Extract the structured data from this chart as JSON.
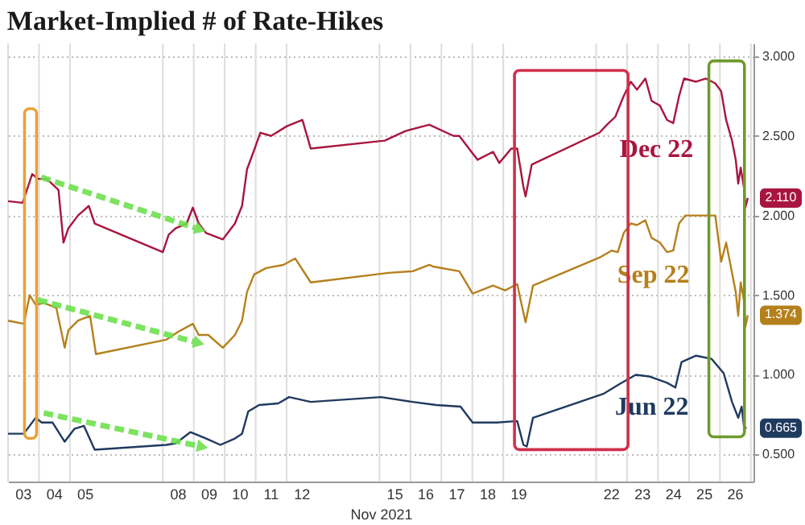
{
  "chart_data": {
    "type": "line",
    "title": "Market-Implied # of Rate-Hikes",
    "xlabel": "Nov 2021",
    "xlim": [
      "2021-11-03T00:00",
      "2021-11-27T02:00"
    ],
    "ylim": [
      0.33,
      3.08
    ],
    "xticks": [
      {
        "value": "2021-11-03T00:00",
        "label": null
      },
      {
        "value": "2021-11-03T12:00",
        "label": "03"
      },
      {
        "value": "2021-11-04T00:00",
        "label": null
      },
      {
        "value": "2021-11-04T12:00",
        "label": "04"
      },
      {
        "value": "2021-11-05T00:00",
        "label": null
      },
      {
        "value": "2021-11-05T12:00",
        "label": "05"
      },
      {
        "value": "2021-11-08T00:00",
        "label": null
      },
      {
        "value": "2021-11-08T12:00",
        "label": "08"
      },
      {
        "value": "2021-11-09T00:00",
        "label": null
      },
      {
        "value": "2021-11-09T12:00",
        "label": "09"
      },
      {
        "value": "2021-11-10T00:00",
        "label": null
      },
      {
        "value": "2021-11-10T12:00",
        "label": "10"
      },
      {
        "value": "2021-11-11T00:00",
        "label": null
      },
      {
        "value": "2021-11-11T12:00",
        "label": "11"
      },
      {
        "value": "2021-11-12T00:00",
        "label": null
      },
      {
        "value": "2021-11-12T12:00",
        "label": "12"
      },
      {
        "value": "2021-11-15T00:00",
        "label": null
      },
      {
        "value": "2021-11-15T12:00",
        "label": "15"
      },
      {
        "value": "2021-11-16T00:00",
        "label": null
      },
      {
        "value": "2021-11-16T12:00",
        "label": "16"
      },
      {
        "value": "2021-11-17T00:00",
        "label": null
      },
      {
        "value": "2021-11-17T12:00",
        "label": "17"
      },
      {
        "value": "2021-11-18T00:00",
        "label": null
      },
      {
        "value": "2021-11-18T12:00",
        "label": "18"
      },
      {
        "value": "2021-11-19T00:00",
        "label": null
      },
      {
        "value": "2021-11-19T12:00",
        "label": "19"
      },
      {
        "value": "2021-11-22T00:00",
        "label": null
      },
      {
        "value": "2021-11-22T12:00",
        "label": "22"
      },
      {
        "value": "2021-11-23T00:00",
        "label": null
      },
      {
        "value": "2021-11-23T12:00",
        "label": "23"
      },
      {
        "value": "2021-11-24T00:00",
        "label": null
      },
      {
        "value": "2021-11-24T12:00",
        "label": "24"
      },
      {
        "value": "2021-11-25T00:00",
        "label": null
      },
      {
        "value": "2021-11-25T12:00",
        "label": "25"
      },
      {
        "value": "2021-11-26T00:00",
        "label": null
      },
      {
        "value": "2021-11-26T12:00",
        "label": "26"
      },
      {
        "value": "2021-11-27T00:00",
        "label": null
      }
    ],
    "yticks": [
      {
        "value": 0.5,
        "label": "0.500"
      },
      {
        "value": 1,
        "label": "1.000"
      },
      {
        "value": 1.5,
        "label": "1.500"
      },
      {
        "value": 2,
        "label": "2.000"
      },
      {
        "value": 2.5,
        "label": "2.500"
      },
      {
        "value": 3,
        "label": "3.000"
      }
    ],
    "grid": true,
    "legend": false,
    "marker": "none",
    "line_style": "solid",
    "series": [
      {
        "name": "Dec 22",
        "color": "#a8163f",
        "x": [
          "2021-11-03T00:00",
          "2021-11-03T11:17",
          "2021-11-03T15:50",
          "2021-11-03T18:43",
          "2021-11-03T23:17",
          "2021-11-04T06:00",
          "2021-11-04T15:07",
          "2021-11-04T18:58",
          "2021-11-04T22:48",
          "2021-11-05T06:14",
          "2021-11-05T14:38",
          "2021-11-05T19:12",
          "2021-11-08T00:00",
          "2021-11-08T04:34",
          "2021-11-08T10:05",
          "2021-11-08T18:29",
          "2021-11-08T23:17",
          "2021-11-09T03:50",
          "2021-11-09T09:36",
          "2021-11-09T22:34",
          "2021-11-10T07:55",
          "2021-11-10T13:26",
          "2021-11-10T17:17",
          "2021-11-10T22:48",
          "2021-11-11T03:36",
          "2021-11-11T12:00",
          "2021-11-12T00:00",
          "2021-11-12T12:14",
          "2021-11-12T18:43",
          "2021-11-15T04:05",
          "2021-11-15T19:55",
          "2021-11-16T14:38",
          "2021-11-17T09:22",
          "2021-11-17T13:55",
          "2021-11-17T21:22",
          "2021-11-18T04:05",
          "2021-11-18T16:05",
          "2021-11-18T20:53",
          "2021-11-19T06:14",
          "2021-11-19T10:48",
          "2021-11-19T15:36",
          "2021-11-19T17:17",
          "2021-11-19T22:05",
          "2021-11-22T02:38",
          "2021-11-22T08:24",
          "2021-11-22T14:53",
          "2021-11-22T21:22",
          "2021-11-23T02:53",
          "2021-11-23T07:41",
          "2021-11-23T14:10",
          "2021-11-23T18:58",
          "2021-11-24T01:26",
          "2021-11-24T06:58",
          "2021-11-24T11:46",
          "2021-11-24T16:19",
          "2021-11-24T20:10",
          "2021-11-25T05:31",
          "2021-11-25T12:58",
          "2021-11-25T20:24",
          "2021-11-26T00:58",
          "2021-11-26T04:48",
          "2021-11-26T09:22",
          "2021-11-26T12:14",
          "2021-11-26T14:10",
          "2021-11-26T16:05",
          "2021-11-26T18:43",
          "2021-11-26T19:41",
          "2021-11-26T21:36"
        ],
        "values": [
          2.09,
          2.08,
          2.19,
          2.26,
          2.23,
          2.23,
          2.16,
          1.83,
          1.92,
          2.0,
          2.06,
          1.95,
          1.77,
          1.88,
          1.92,
          1.95,
          2.05,
          1.95,
          1.89,
          1.85,
          1.95,
          2.06,
          2.29,
          2.41,
          2.52,
          2.5,
          2.56,
          2.6,
          2.42,
          2.47,
          2.53,
          2.57,
          2.5,
          2.5,
          2.42,
          2.35,
          2.4,
          2.33,
          2.42,
          2.42,
          2.18,
          2.12,
          2.32,
          2.52,
          2.57,
          2.62,
          2.75,
          2.84,
          2.79,
          2.86,
          2.72,
          2.69,
          2.6,
          2.58,
          2.75,
          2.86,
          2.84,
          2.86,
          2.83,
          2.78,
          2.6,
          2.47,
          2.35,
          2.2,
          2.3,
          2.17,
          2.05,
          2.11
        ],
        "value_labels": [
          null,
          null,
          null,
          null,
          null,
          null,
          null,
          null,
          null,
          null,
          null,
          null,
          null,
          null,
          null,
          null,
          null,
          null,
          null,
          null,
          null,
          null,
          null,
          null,
          null,
          null,
          null,
          null,
          null,
          null,
          null,
          null,
          null,
          null,
          null,
          null,
          null,
          null,
          null,
          null,
          null,
          null,
          null,
          null,
          null,
          null,
          null,
          null,
          null,
          null,
          null,
          null,
          null,
          null,
          null,
          null,
          null,
          null,
          null,
          null,
          null,
          null,
          null,
          null,
          null,
          null,
          null,
          "2.110"
        ]
      },
      {
        "name": "Sep 22",
        "color": "#b5801c",
        "x": [
          "2021-11-03T00:00",
          "2021-11-03T12:14",
          "2021-11-03T16:48",
          "2021-11-03T21:22",
          "2021-11-04T04:05",
          "2021-11-04T13:26",
          "2021-11-04T19:55",
          "2021-11-04T22:48",
          "2021-11-05T06:14",
          "2021-11-05T15:36",
          "2021-11-05T20:10",
          "2021-11-08T02:38",
          "2021-11-08T12:00",
          "2021-11-08T23:17",
          "2021-11-09T03:50",
          "2021-11-09T11:17",
          "2021-11-09T22:34",
          "2021-11-10T07:55",
          "2021-11-10T13:26",
          "2021-11-10T17:17",
          "2021-11-10T22:48",
          "2021-11-11T08:10",
          "2021-11-11T21:22",
          "2021-11-12T06:43",
          "2021-11-12T18:43",
          "2021-11-15T06:58",
          "2021-11-16T01:41",
          "2021-11-16T14:38",
          "2021-11-16T17:31",
          "2021-11-17T13:55",
          "2021-11-18T00:14",
          "2021-11-18T16:05",
          "2021-11-19T01:26",
          "2021-11-19T10:48",
          "2021-11-19T13:41",
          "2021-11-19T17:17",
          "2021-11-19T23:02",
          "2021-11-22T03:36",
          "2021-11-22T12:00",
          "2021-11-22T16:48",
          "2021-11-22T21:22",
          "2021-11-23T02:53",
          "2021-11-23T07:41",
          "2021-11-23T14:10",
          "2021-11-23T18:58",
          "2021-11-24T01:26",
          "2021-11-24T06:58",
          "2021-11-24T11:46",
          "2021-11-24T16:19",
          "2021-11-24T21:07",
          "2021-11-25T05:31",
          "2021-11-25T14:38",
          "2021-11-25T20:24",
          "2021-11-26T00:58",
          "2021-11-26T04:48",
          "2021-11-26T09:22",
          "2021-11-26T12:14",
          "2021-11-26T14:10",
          "2021-11-26T16:05",
          "2021-11-26T18:43",
          "2021-11-26T19:41",
          "2021-11-26T21:36"
        ],
        "values": [
          1.34,
          1.32,
          1.5,
          1.44,
          1.45,
          1.42,
          1.17,
          1.28,
          1.34,
          1.37,
          1.13,
          1.22,
          1.27,
          1.32,
          1.25,
          1.25,
          1.17,
          1.25,
          1.34,
          1.52,
          1.63,
          1.67,
          1.69,
          1.73,
          1.58,
          1.64,
          1.65,
          1.69,
          1.68,
          1.65,
          1.51,
          1.56,
          1.53,
          1.57,
          1.46,
          1.33,
          1.56,
          1.74,
          1.78,
          1.77,
          1.89,
          1.95,
          1.94,
          1.97,
          1.86,
          1.83,
          1.77,
          1.78,
          1.95,
          2.0,
          2.0,
          2.0,
          2.0,
          1.71,
          1.83,
          1.64,
          1.52,
          1.37,
          1.58,
          1.46,
          1.3,
          1.374
        ],
        "value_labels": [
          null,
          null,
          null,
          null,
          null,
          null,
          null,
          null,
          null,
          null,
          null,
          null,
          null,
          null,
          null,
          null,
          null,
          null,
          null,
          null,
          null,
          null,
          null,
          null,
          null,
          null,
          null,
          null,
          null,
          null,
          null,
          null,
          null,
          null,
          null,
          null,
          null,
          null,
          null,
          null,
          null,
          null,
          null,
          null,
          null,
          null,
          null,
          null,
          null,
          null,
          null,
          null,
          null,
          null,
          null,
          null,
          null,
          null,
          null,
          null,
          null,
          "1.374"
        ]
      },
      {
        "name": "Jun 22",
        "color": "#1f3a5f",
        "x": [
          "2021-11-03T00:00",
          "2021-11-03T12:14",
          "2021-11-03T21:22",
          "2021-11-04T02:10",
          "2021-11-04T10:34",
          "2021-11-04T19:55",
          "2021-11-05T03:22",
          "2021-11-05T10:48",
          "2021-11-05T19:12",
          "2021-11-08T02:38",
          "2021-11-08T10:05",
          "2021-11-08T21:22",
          "2021-11-09T09:36",
          "2021-11-09T20:38",
          "2021-11-10T07:55",
          "2021-11-10T13:26",
          "2021-11-10T18:14",
          "2021-11-11T02:38",
          "2021-11-11T17:31",
          "2021-11-12T01:55",
          "2021-11-12T18:43",
          "2021-11-15T01:12",
          "2021-11-16T01:41",
          "2021-11-16T20:10",
          "2021-11-17T14:53",
          "2021-11-18T00:14",
          "2021-11-18T18:58",
          "2021-11-19T10:48",
          "2021-11-19T15:36",
          "2021-11-19T18:14",
          "2021-11-19T23:02",
          "2021-11-22T05:31",
          "2021-11-22T17:46",
          "2021-11-23T06:43",
          "2021-11-23T17:02",
          "2021-11-24T06:58",
          "2021-11-24T13:26",
          "2021-11-24T18:14",
          "2021-11-25T05:31",
          "2021-11-25T17:31",
          "2021-11-26T02:53",
          "2021-11-26T09:22",
          "2021-11-26T14:10",
          "2021-11-26T16:48",
          "2021-11-26T18:43",
          "2021-11-26T20:38"
        ],
        "values": [
          0.63,
          0.63,
          0.73,
          0.7,
          0.7,
          0.58,
          0.66,
          0.68,
          0.53,
          0.56,
          0.57,
          0.64,
          0.6,
          0.56,
          0.6,
          0.63,
          0.77,
          0.81,
          0.82,
          0.86,
          0.83,
          0.86,
          0.83,
          0.81,
          0.8,
          0.7,
          0.7,
          0.71,
          0.56,
          0.55,
          0.73,
          0.88,
          0.94,
          1.0,
          0.99,
          0.95,
          0.92,
          1.08,
          1.12,
          1.1,
          1.01,
          0.83,
          0.73,
          0.8,
          0.67,
          0.665
        ],
        "value_labels": [
          null,
          null,
          null,
          null,
          null,
          null,
          null,
          null,
          null,
          null,
          null,
          null,
          null,
          null,
          null,
          null,
          null,
          null,
          null,
          null,
          null,
          null,
          null,
          null,
          null,
          null,
          null,
          null,
          null,
          null,
          null,
          null,
          null,
          null,
          null,
          null,
          null,
          null,
          null,
          null,
          null,
          null,
          null,
          null,
          null,
          "0.665"
        ]
      }
    ]
  }
}
